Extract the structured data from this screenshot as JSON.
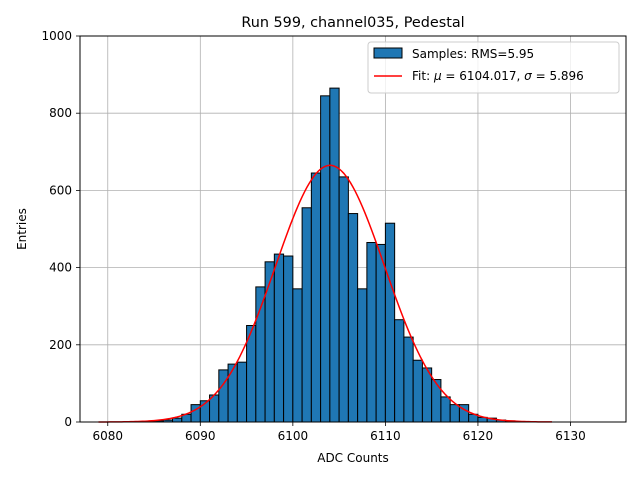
{
  "chart_data": {
    "type": "bar",
    "title": "Run 599, channel035, Pedestal",
    "xlabel": "ADC Counts",
    "ylabel": "Entries",
    "xlim": [
      6077,
      6136
    ],
    "ylim": [
      0,
      1000
    ],
    "xticks": [
      6080,
      6090,
      6100,
      6110,
      6120,
      6130
    ],
    "yticks": [
      0,
      200,
      400,
      600,
      800,
      1000
    ],
    "grid": true,
    "legend_position": "top-right",
    "bar_color": "#1f77b4",
    "fit_color": "#ff0000",
    "bin_width": 1,
    "histogram": {
      "name": "Samples: RMS=5.95",
      "bins_left": [
        6084,
        6085,
        6086,
        6087,
        6088,
        6089,
        6090,
        6091,
        6092,
        6093,
        6094,
        6095,
        6096,
        6097,
        6098,
        6099,
        6100,
        6101,
        6102,
        6103,
        6104,
        6105,
        6106,
        6107,
        6108,
        6109,
        6110,
        6111,
        6112,
        6113,
        6114,
        6115,
        6116,
        6117,
        6118,
        6119,
        6120,
        6121,
        6122,
        6123
      ],
      "counts": [
        2,
        3,
        5,
        10,
        20,
        45,
        55,
        70,
        135,
        150,
        155,
        250,
        350,
        415,
        435,
        430,
        345,
        555,
        645,
        845,
        865,
        635,
        540,
        345,
        465,
        460,
        515,
        265,
        220,
        160,
        140,
        110,
        65,
        45,
        45,
        20,
        12,
        10,
        5,
        3
      ]
    },
    "fit": {
      "name_prefix": "Fit: ",
      "mu_symbol": "μ",
      "mu_text": " = 6104.017, ",
      "sigma_symbol": "σ",
      "sigma_text": " = 5.896",
      "mu": 6104.017,
      "sigma": 5.896,
      "amplitude": 665,
      "x_range": [
        6079,
        6128
      ]
    }
  }
}
